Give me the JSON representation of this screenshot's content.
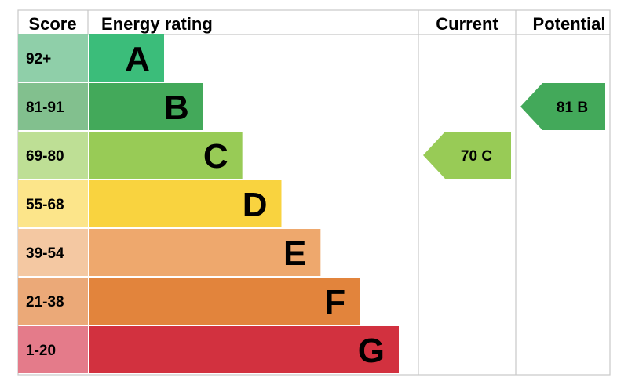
{
  "chart_data": {
    "type": "bar",
    "headers": {
      "score": "Score",
      "rating": "Energy rating",
      "current": "Current",
      "potential": "Potential"
    },
    "bands": [
      {
        "letter": "A",
        "score": "92+",
        "bar_color": "#3bbd7a",
        "score_color": "#8fcfa9"
      },
      {
        "letter": "B",
        "score": "81-91",
        "bar_color": "#43a95a",
        "score_color": "#82c08e"
      },
      {
        "letter": "C",
        "score": "69-80",
        "bar_color": "#98cb56",
        "score_color": "#bedf95"
      },
      {
        "letter": "D",
        "score": "55-68",
        "bar_color": "#f9d33f",
        "score_color": "#fce58a"
      },
      {
        "letter": "E",
        "score": "39-54",
        "bar_color": "#eea86d",
        "score_color": "#f4c8a2"
      },
      {
        "letter": "F",
        "score": "21-38",
        "bar_color": "#e2843c",
        "score_color": "#eba978"
      },
      {
        "letter": "G",
        "score": "1-20",
        "bar_color": "#d2313f",
        "score_color": "#e47b8a"
      }
    ],
    "current": {
      "value": 70,
      "band": "C",
      "label": "70  C",
      "color": "#98cb56"
    },
    "potential": {
      "value": 81,
      "band": "B",
      "label": "81  B",
      "color": "#43a95a"
    }
  }
}
